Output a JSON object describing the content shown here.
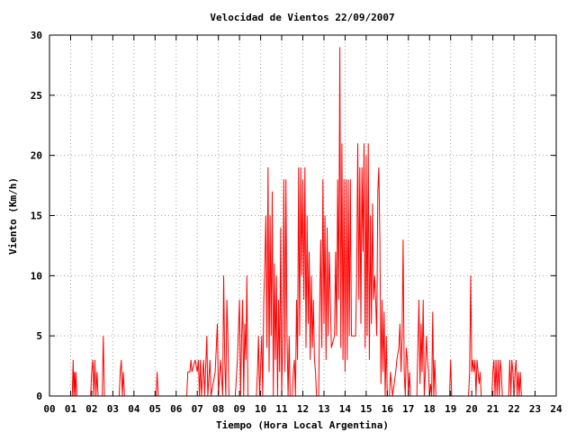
{
  "chart_data": {
    "type": "line",
    "title": "Velocidad de Vientos 22/09/2007",
    "xlabel": "Tiempo (Hora Local Argentina)",
    "ylabel": "Viento (Km/h)",
    "xlim": [
      0,
      24
    ],
    "ylim": [
      0,
      30
    ],
    "x_ticks": [
      "00",
      "01",
      "02",
      "03",
      "04",
      "05",
      "06",
      "07",
      "08",
      "09",
      "10",
      "11",
      "12",
      "13",
      "14",
      "15",
      "16",
      "17",
      "18",
      "19",
      "20",
      "21",
      "22",
      "23",
      "24"
    ],
    "y_ticks": [
      0,
      5,
      10,
      15,
      20,
      25,
      30
    ],
    "grid": true,
    "legend": "none",
    "series": [
      {
        "color": "#ff0000",
        "points": [
          [
            0.0,
            0
          ],
          [
            1.08,
            0
          ],
          [
            1.12,
            3
          ],
          [
            1.15,
            0
          ],
          [
            1.18,
            2
          ],
          [
            1.22,
            0
          ],
          [
            1.25,
            2
          ],
          [
            1.3,
            0
          ],
          [
            1.95,
            0
          ],
          [
            2.0,
            2
          ],
          [
            2.05,
            3
          ],
          [
            2.1,
            0
          ],
          [
            2.15,
            3
          ],
          [
            2.2,
            0
          ],
          [
            2.25,
            2
          ],
          [
            2.3,
            0
          ],
          [
            2.5,
            0
          ],
          [
            2.55,
            5
          ],
          [
            2.6,
            0
          ],
          [
            3.3,
            0
          ],
          [
            3.35,
            2
          ],
          [
            3.4,
            3
          ],
          [
            3.45,
            0
          ],
          [
            3.5,
            2
          ],
          [
            3.55,
            0
          ],
          [
            5.05,
            0
          ],
          [
            5.1,
            2
          ],
          [
            5.15,
            0
          ],
          [
            6.5,
            0
          ],
          [
            6.55,
            2
          ],
          [
            6.65,
            2
          ],
          [
            6.7,
            3
          ],
          [
            6.75,
            2
          ],
          [
            6.9,
            3
          ],
          [
            7.0,
            2
          ],
          [
            7.05,
            3
          ],
          [
            7.1,
            0
          ],
          [
            7.15,
            3
          ],
          [
            7.2,
            0
          ],
          [
            7.3,
            3
          ],
          [
            7.35,
            0
          ],
          [
            7.45,
            5
          ],
          [
            7.5,
            0
          ],
          [
            7.6,
            3
          ],
          [
            7.65,
            0
          ],
          [
            7.85,
            2
          ],
          [
            7.95,
            6
          ],
          [
            8.0,
            0
          ],
          [
            8.1,
            3
          ],
          [
            8.2,
            0
          ],
          [
            8.25,
            10
          ],
          [
            8.3,
            3
          ],
          [
            8.35,
            0
          ],
          [
            8.4,
            8
          ],
          [
            8.45,
            5
          ],
          [
            8.5,
            0
          ],
          [
            8.8,
            0
          ],
          [
            8.9,
            3
          ],
          [
            9.0,
            8
          ],
          [
            9.05,
            0
          ],
          [
            9.1,
            5
          ],
          [
            9.15,
            8
          ],
          [
            9.2,
            0
          ],
          [
            9.25,
            6
          ],
          [
            9.3,
            3
          ],
          [
            9.35,
            10
          ],
          [
            9.4,
            0
          ],
          [
            9.8,
            0
          ],
          [
            9.85,
            2
          ],
          [
            9.9,
            5
          ],
          [
            9.95,
            0
          ],
          [
            10.05,
            5
          ],
          [
            10.1,
            0
          ],
          [
            10.15,
            8
          ],
          [
            10.2,
            11
          ],
          [
            10.25,
            15
          ],
          [
            10.3,
            4
          ],
          [
            10.35,
            19
          ],
          [
            10.4,
            2
          ],
          [
            10.45,
            15
          ],
          [
            10.5,
            5
          ],
          [
            10.55,
            17
          ],
          [
            10.6,
            0
          ],
          [
            10.65,
            11
          ],
          [
            10.7,
            3
          ],
          [
            10.75,
            10
          ],
          [
            10.8,
            0
          ],
          [
            10.85,
            8
          ],
          [
            10.9,
            2
          ],
          [
            10.95,
            14
          ],
          [
            11.0,
            0
          ],
          [
            11.05,
            5
          ],
          [
            11.1,
            18
          ],
          [
            11.15,
            2
          ],
          [
            11.2,
            18
          ],
          [
            11.25,
            5
          ],
          [
            11.3,
            0
          ],
          [
            11.35,
            5
          ],
          [
            11.4,
            0
          ],
          [
            11.5,
            0
          ],
          [
            11.55,
            2
          ],
          [
            11.6,
            3
          ],
          [
            11.65,
            0
          ],
          [
            11.7,
            8
          ],
          [
            11.75,
            3
          ],
          [
            11.8,
            19
          ],
          [
            11.85,
            5
          ],
          [
            11.9,
            19
          ],
          [
            11.95,
            10
          ],
          [
            12.0,
            18
          ],
          [
            12.05,
            8
          ],
          [
            12.1,
            19
          ],
          [
            12.15,
            4
          ],
          [
            12.2,
            15
          ],
          [
            12.25,
            6
          ],
          [
            12.3,
            12
          ],
          [
            12.35,
            3
          ],
          [
            12.4,
            10
          ],
          [
            12.45,
            4
          ],
          [
            12.5,
            8
          ],
          [
            12.55,
            3
          ],
          [
            12.6,
            2
          ],
          [
            12.65,
            0
          ],
          [
            12.75,
            0
          ],
          [
            12.8,
            8
          ],
          [
            12.85,
            13
          ],
          [
            12.9,
            4
          ],
          [
            12.95,
            18
          ],
          [
            13.0,
            6
          ],
          [
            13.05,
            15
          ],
          [
            13.1,
            3
          ],
          [
            13.15,
            14
          ],
          [
            13.2,
            5
          ],
          [
            13.25,
            12
          ],
          [
            13.3,
            8
          ],
          [
            13.35,
            4
          ],
          [
            13.5,
            5
          ],
          [
            13.55,
            12
          ],
          [
            13.6,
            5
          ],
          [
            13.65,
            18
          ],
          [
            13.7,
            8
          ],
          [
            13.75,
            29
          ],
          [
            13.8,
            4
          ],
          [
            13.85,
            21
          ],
          [
            13.9,
            3
          ],
          [
            13.95,
            18
          ],
          [
            14.0,
            2
          ],
          [
            14.05,
            18
          ],
          [
            14.1,
            3
          ],
          [
            14.15,
            18
          ],
          [
            14.2,
            5
          ],
          [
            14.25,
            18
          ],
          [
            14.3,
            5
          ],
          [
            14.4,
            5
          ],
          [
            14.5,
            5
          ],
          [
            14.55,
            10
          ],
          [
            14.6,
            21
          ],
          [
            14.65,
            8
          ],
          [
            14.7,
            19
          ],
          [
            14.75,
            6
          ],
          [
            14.8,
            19
          ],
          [
            14.85,
            12
          ],
          [
            14.9,
            21
          ],
          [
            14.95,
            4
          ],
          [
            15.0,
            20
          ],
          [
            15.05,
            5
          ],
          [
            15.1,
            21
          ],
          [
            15.15,
            3
          ],
          [
            15.2,
            15
          ],
          [
            15.25,
            6
          ],
          [
            15.3,
            16
          ],
          [
            15.35,
            8
          ],
          [
            15.4,
            10
          ],
          [
            15.45,
            8
          ],
          [
            15.5,
            5
          ],
          [
            15.55,
            17
          ],
          [
            15.6,
            19
          ],
          [
            15.65,
            13
          ],
          [
            15.7,
            1
          ],
          [
            15.75,
            8
          ],
          [
            15.8,
            2
          ],
          [
            15.85,
            7
          ],
          [
            15.9,
            0
          ],
          [
            15.95,
            5
          ],
          [
            16.0,
            0
          ],
          [
            16.1,
            0
          ],
          [
            16.15,
            2
          ],
          [
            16.2,
            1
          ],
          [
            16.25,
            0
          ],
          [
            16.4,
            2
          ],
          [
            16.45,
            3
          ],
          [
            16.55,
            4
          ],
          [
            16.6,
            6
          ],
          [
            16.65,
            2
          ],
          [
            16.7,
            5
          ],
          [
            16.75,
            13
          ],
          [
            16.8,
            2
          ],
          [
            16.85,
            0
          ],
          [
            16.9,
            4
          ],
          [
            16.95,
            3
          ],
          [
            17.0,
            0
          ],
          [
            17.05,
            2
          ],
          [
            17.1,
            0
          ],
          [
            17.4,
            0
          ],
          [
            17.45,
            4
          ],
          [
            17.5,
            8
          ],
          [
            17.55,
            1
          ],
          [
            17.6,
            6
          ],
          [
            17.65,
            2
          ],
          [
            17.7,
            8
          ],
          [
            17.75,
            0
          ],
          [
            17.8,
            2
          ],
          [
            17.85,
            5
          ],
          [
            17.9,
            3
          ],
          [
            17.95,
            2
          ],
          [
            18.0,
            0
          ],
          [
            18.05,
            1
          ],
          [
            18.1,
            0
          ],
          [
            18.15,
            7
          ],
          [
            18.2,
            0
          ],
          [
            18.25,
            3
          ],
          [
            18.3,
            0
          ],
          [
            18.95,
            0
          ],
          [
            19.0,
            3
          ],
          [
            19.05,
            0
          ],
          [
            19.85,
            0
          ],
          [
            19.9,
            2
          ],
          [
            19.95,
            10
          ],
          [
            20.0,
            2
          ],
          [
            20.05,
            3
          ],
          [
            20.1,
            2
          ],
          [
            20.15,
            3
          ],
          [
            20.2,
            0
          ],
          [
            20.25,
            3
          ],
          [
            20.3,
            2
          ],
          [
            20.35,
            1
          ],
          [
            20.4,
            2
          ],
          [
            20.45,
            0
          ],
          [
            20.95,
            0
          ],
          [
            21.0,
            2
          ],
          [
            21.05,
            3
          ],
          [
            21.1,
            0
          ],
          [
            21.15,
            3
          ],
          [
            21.2,
            0
          ],
          [
            21.25,
            3
          ],
          [
            21.3,
            0
          ],
          [
            21.35,
            3
          ],
          [
            21.4,
            2
          ],
          [
            21.45,
            0
          ],
          [
            21.75,
            0
          ],
          [
            21.8,
            3
          ],
          [
            21.85,
            0
          ],
          [
            21.9,
            3
          ],
          [
            21.95,
            2
          ],
          [
            22.0,
            0
          ],
          [
            22.05,
            2
          ],
          [
            22.1,
            3
          ],
          [
            22.15,
            0
          ],
          [
            22.2,
            2
          ],
          [
            22.25,
            0
          ],
          [
            22.3,
            2
          ],
          [
            22.35,
            0
          ],
          [
            24.0,
            0
          ]
        ]
      }
    ]
  }
}
